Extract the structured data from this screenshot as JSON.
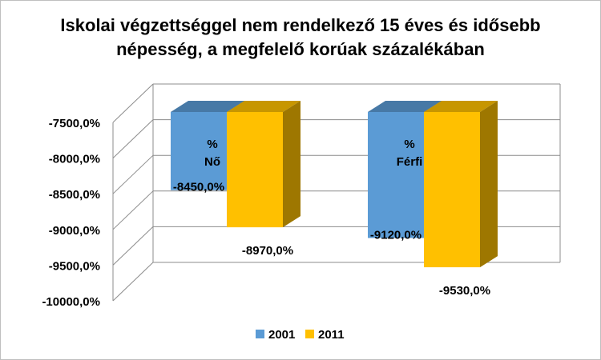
{
  "chart_data": {
    "type": "bar",
    "title_lines": [
      "Iskolai végzettséggel nem rendelkező 15 éves és idősebb",
      "népesség, a megfelelő korúak százalékában"
    ],
    "categories": [
      {
        "label_top": "%",
        "label_bottom": "Nő"
      },
      {
        "label_top": "%",
        "label_bottom": "Férfi"
      }
    ],
    "series": [
      {
        "name": "2001",
        "values": [
          -8450.0,
          -9120.0
        ],
        "data_labels": [
          "-8450,0%",
          "-9120,0%"
        ],
        "color": "#5b9bd5"
      },
      {
        "name": "2011",
        "values": [
          -8970.0,
          -9530.0
        ],
        "data_labels": [
          "-8970,0%",
          "-9530,0%"
        ],
        "color": "#ffc000"
      }
    ],
    "y_ticks": [
      -7500,
      -8000,
      -8500,
      -9000,
      -9500,
      -10000
    ],
    "y_tick_labels": [
      "-7500,0%",
      "-8000,0%",
      "-8500,0%",
      "-9000,0%",
      "-9500,0%",
      "-10000,0%"
    ],
    "ylim": [
      -10000,
      -7500
    ],
    "grid": true,
    "legend_position": "bottom",
    "style": "3d-clustered-column"
  }
}
